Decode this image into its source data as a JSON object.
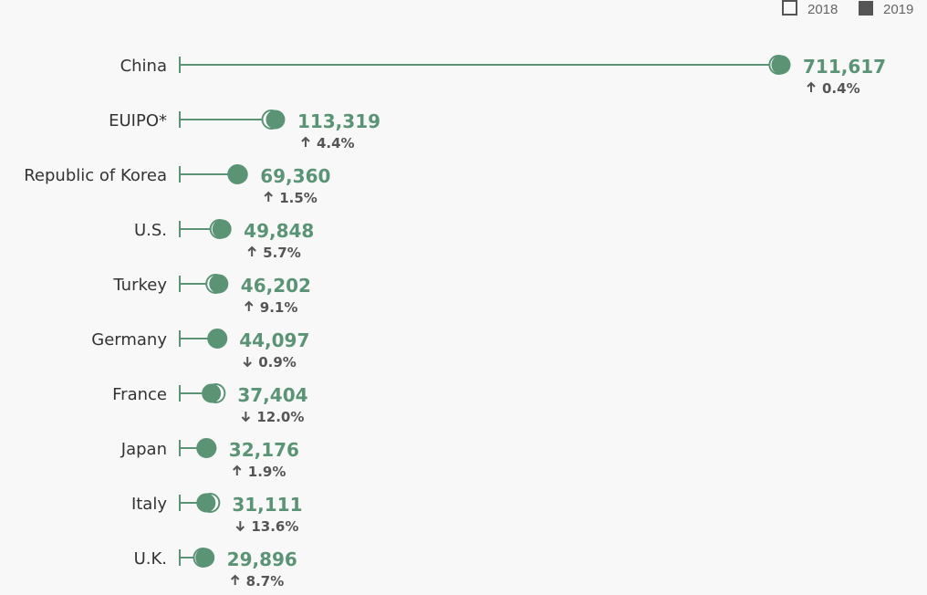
{
  "chart_data": {
    "type": "dumbbell",
    "legend": [
      {
        "label": "2018",
        "style": "hollow"
      },
      {
        "label": "2019",
        "style": "filled"
      }
    ],
    "colors": {
      "accent": "#5a9474",
      "text": "#333333",
      "change": "#555555",
      "legend_text": "#666666",
      "legend_box": "#555555",
      "background": "#f8f8f8"
    },
    "categories": [
      "China",
      "EUIPO*",
      "Republic of Korea",
      "U.S.",
      "Turkey",
      "Germany",
      "France",
      "Japan",
      "Italy",
      "U.K."
    ],
    "series": [
      {
        "name": "2018",
        "values": [
          708770,
          108540,
          68330,
          47160,
          42350,
          44500,
          42500,
          31580,
          35990,
          27500
        ]
      },
      {
        "name": "2019",
        "values": [
          711617,
          113319,
          69360,
          49848,
          46202,
          44097,
          37404,
          32176,
          31111,
          29896
        ]
      }
    ],
    "value_labels": [
      "711,617",
      "113,319",
      "69,360",
      "49,848",
      "46,202",
      "44,097",
      "37,404",
      "32,176",
      "31,111",
      "29,896"
    ],
    "changes": [
      {
        "dir": "up",
        "text": "0.4%"
      },
      {
        "dir": "up",
        "text": "4.4%"
      },
      {
        "dir": "up",
        "text": "1.5%"
      },
      {
        "dir": "up",
        "text": "5.7%"
      },
      {
        "dir": "up",
        "text": "9.1%"
      },
      {
        "dir": "down",
        "text": "0.9%"
      },
      {
        "dir": "down",
        "text": "12.0%"
      },
      {
        "dir": "up",
        "text": "1.9%"
      },
      {
        "dir": "down",
        "text": "13.6%"
      },
      {
        "dir": "up",
        "text": "8.7%"
      }
    ],
    "xlim": [
      0,
      711617
    ],
    "grid": false,
    "legend_position": "top-right"
  }
}
